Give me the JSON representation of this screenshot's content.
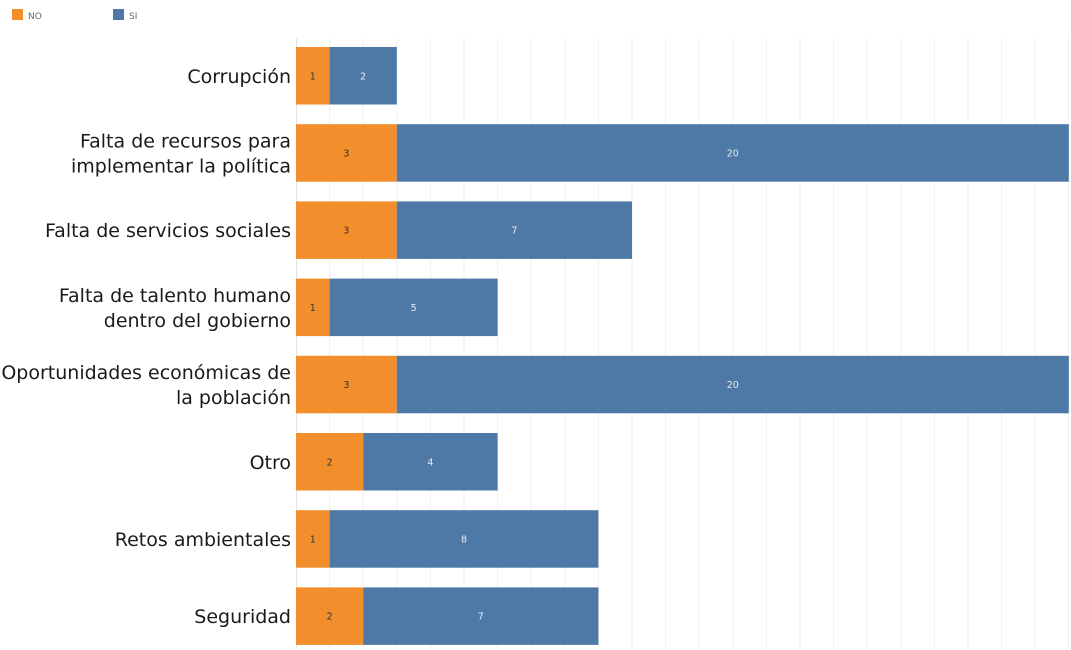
{
  "chart_data": {
    "type": "bar",
    "orientation": "horizontal",
    "stacked": true,
    "categories": [
      [
        "Corrupción"
      ],
      [
        "Falta de recursos para",
        "implementar la política"
      ],
      [
        "Falta de servicios sociales"
      ],
      [
        "Falta de talento humano",
        "dentro del gobierno"
      ],
      [
        "Oportunidades económicas de",
        "la población"
      ],
      [
        "Otro"
      ],
      [
        "Retos ambientales"
      ],
      [
        "Seguridad"
      ]
    ],
    "series": [
      {
        "name": "NO",
        "color": "#F28E2B",
        "label_color": "#333333",
        "values": [
          1,
          3,
          3,
          1,
          3,
          2,
          1,
          2
        ]
      },
      {
        "name": "SI",
        "color": "#4E79A7",
        "label_color": "#E6ECF4",
        "values": [
          2,
          20,
          7,
          5,
          20,
          4,
          8,
          7
        ]
      }
    ],
    "xlim": [
      0,
      23
    ],
    "grid": true,
    "legend": "top-left",
    "title": "",
    "xlabel": "",
    "ylabel": ""
  }
}
